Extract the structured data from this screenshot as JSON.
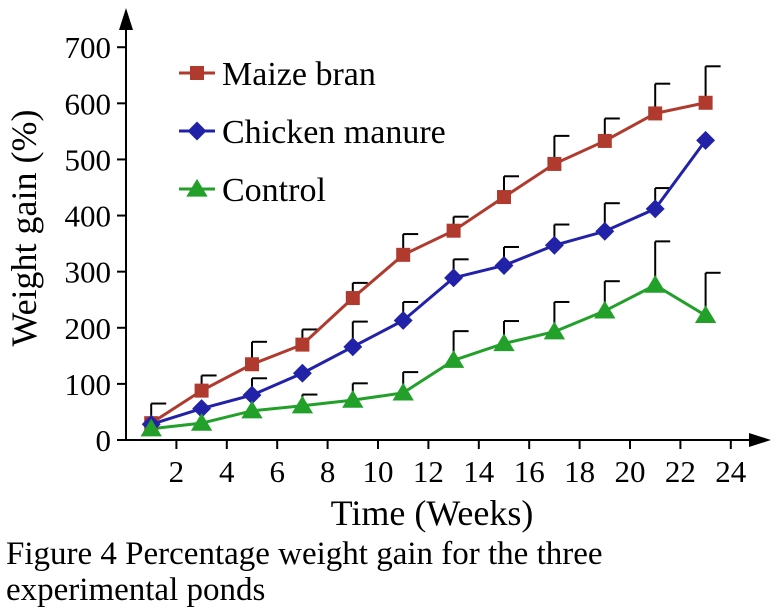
{
  "caption": {
    "line1": "Figure 4 Percentage weight gain for the three",
    "line2": "experimental ponds"
  },
  "chart_data": {
    "type": "line",
    "xlabel": "Time (Weeks)",
    "ylabel": "Weight gain (%)",
    "x": [
      1,
      3,
      5,
      7,
      9,
      11,
      13,
      15,
      17,
      19,
      21,
      23
    ],
    "xlim": [
      0,
      25
    ],
    "ylim": [
      0,
      720
    ],
    "xticks": [
      2,
      4,
      6,
      8,
      10,
      12,
      14,
      16,
      18,
      20,
      22,
      24
    ],
    "yticks": [
      0,
      100,
      200,
      300,
      400,
      500,
      600,
      700
    ],
    "grid": false,
    "legend_position": "top-left",
    "series": [
      {
        "name": "Maize bran",
        "color": "#b03a2e",
        "marker": "square",
        "values": [
          30,
          88,
          135,
          170,
          253,
          330,
          373,
          433,
          492,
          533,
          582,
          601
        ],
        "error": [
          35,
          27,
          40,
          27,
          27,
          37,
          25,
          37,
          50,
          40,
          53,
          65
        ]
      },
      {
        "name": "Chicken manure",
        "color": "#2222a8",
        "marker": "diamond",
        "values": [
          28,
          56,
          80,
          119,
          166,
          213,
          289,
          311,
          347,
          372,
          412,
          534
        ],
        "error": [
          0,
          0,
          30,
          0,
          45,
          33,
          33,
          33,
          37,
          50,
          37,
          0
        ]
      },
      {
        "name": "Control",
        "color": "#22a02a",
        "marker": "triangle",
        "values": [
          20,
          30,
          52,
          61,
          71,
          84,
          142,
          172,
          193,
          230,
          276,
          222
        ],
        "error": [
          0,
          0,
          0,
          20,
          30,
          37,
          52,
          40,
          53,
          53,
          78,
          76
        ]
      }
    ]
  }
}
